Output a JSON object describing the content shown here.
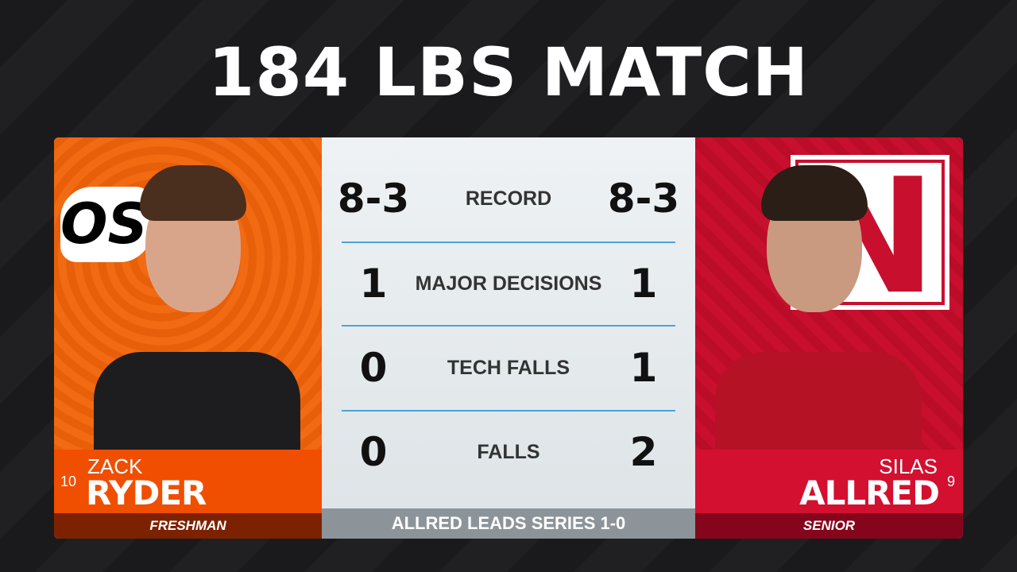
{
  "title": "184 LBS MATCH",
  "left": {
    "first": "ZACK",
    "last": "RYDER",
    "rank": "10",
    "class": "FRESHMAN",
    "school_logo": "OSU",
    "color": "#f04e00"
  },
  "right": {
    "first": "SILAS",
    "last": "ALLRED",
    "rank": "9",
    "class": "SENIOR",
    "school_logo": "N",
    "color": "#d3102f"
  },
  "stats": [
    {
      "label": "RECORD",
      "left": "8-3",
      "right": "8-3"
    },
    {
      "label": "MAJOR DECISIONS",
      "left": "1",
      "right": "1"
    },
    {
      "label": "TECH FALLS",
      "left": "0",
      "right": "1"
    },
    {
      "label": "FALLS",
      "left": "0",
      "right": "2"
    }
  ],
  "footer": "ALLRED LEADS SERIES 1-0"
}
